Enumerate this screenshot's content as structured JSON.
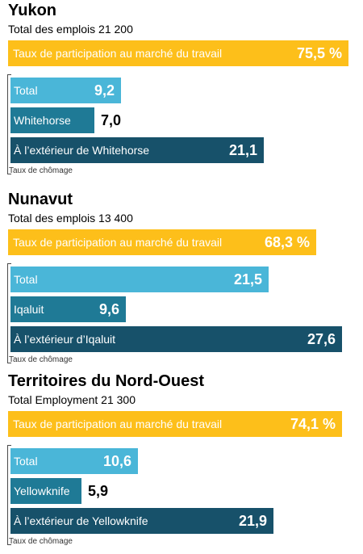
{
  "colors": {
    "participation": "#fdbf1a",
    "total": "#4ab6d8",
    "capital": "#1f7a96",
    "outside": "#17516a"
  },
  "unemployment_caption": "Taux de chômage",
  "chart_data": [
    {
      "type": "bar",
      "title": "Yukon",
      "subtitle": "Total des emplois 21 200",
      "participation": {
        "label": "Taux de participation au marché du travail",
        "value": 75.5,
        "display": "75,5 %"
      },
      "categories": [
        "Total",
        "Whitehorse",
        "À l’extérieur de Whitehorse"
      ],
      "values": [
        9.2,
        7.0,
        21.1
      ],
      "value_labels": [
        "9,2",
        "7,0",
        "21,1"
      ],
      "xlabel": "Taux de chômage"
    },
    {
      "type": "bar",
      "title": "Nunavut",
      "subtitle": "Total des emplois 13 400",
      "participation": {
        "label": "Taux de participation au marché du travail",
        "value": 68.3,
        "display": "68,3 %"
      },
      "categories": [
        "Total",
        "Iqaluit",
        "À l’extérieur d’Iqaluit"
      ],
      "values": [
        21.5,
        9.6,
        27.6
      ],
      "value_labels": [
        "21,5",
        "9,6",
        "27,6"
      ],
      "xlabel": "Taux de chômage"
    },
    {
      "type": "bar",
      "title": "Territoires du Nord-Ouest",
      "subtitle": "Total Employment 21 300",
      "participation": {
        "label": "Taux de participation au marché du travail",
        "value": 74.1,
        "display": "74,1 %"
      },
      "categories": [
        "Total",
        "Yellowknife",
        "À l’extérieur de Yellowknife"
      ],
      "values": [
        10.6,
        5.9,
        21.9
      ],
      "value_labels": [
        "10,6",
        "5,9",
        "21,9"
      ],
      "xlabel": "Taux de chômage"
    }
  ]
}
